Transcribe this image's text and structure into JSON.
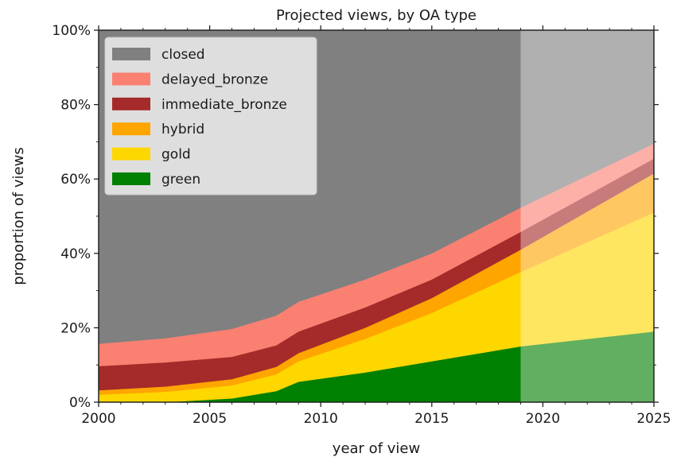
{
  "chart_data": {
    "type": "area",
    "title": "Projected views, by OA type",
    "xlabel": "year of view",
    "ylabel": "proportion of views",
    "xlim": [
      2000,
      2025
    ],
    "ylim": [
      0,
      100
    ],
    "x_ticks": [
      "2000",
      "2005",
      "2010",
      "2015",
      "2020",
      "2025"
    ],
    "y_ticks": [
      "0%",
      "20%",
      "40%",
      "60%",
      "80%",
      "100%"
    ],
    "legend_position": "top-left",
    "projection_start": 2019,
    "x": [
      2000,
      2003,
      2006,
      2008,
      2009,
      2012,
      2015,
      2019,
      2025
    ],
    "series": [
      {
        "name": "green",
        "color": "#008000",
        "values": [
          0,
          0,
          1,
          3,
          5.5,
          8,
          11,
          15,
          19
        ]
      },
      {
        "name": "gold",
        "color": "#ffd700",
        "values": [
          2,
          2.8,
          3.5,
          4.5,
          5.5,
          9,
          13,
          20,
          32
        ]
      },
      {
        "name": "hybrid",
        "color": "#ffa500",
        "values": [
          1.2,
          1.4,
          1.7,
          2,
          2.2,
          3,
          4,
          6,
          10.5
        ]
      },
      {
        "name": "immediate_bronze",
        "color": "#a52a2a",
        "values": [
          6.5,
          6.5,
          6,
          5.8,
          5.8,
          5.5,
          5,
          4.8,
          4
        ]
      },
      {
        "name": "delayed_bronze",
        "color": "#fa8072",
        "values": [
          6,
          6.5,
          7.5,
          8,
          8,
          7.5,
          7,
          6.5,
          4
        ]
      },
      {
        "name": "closed",
        "color": "#808080",
        "values": [
          84.3,
          82.8,
          80.3,
          76.7,
          73,
          67,
          60,
          47.7,
          30.5
        ]
      }
    ],
    "legend_order": [
      "closed",
      "delayed_bronze",
      "immediate_bronze",
      "hybrid",
      "gold",
      "green"
    ]
  }
}
